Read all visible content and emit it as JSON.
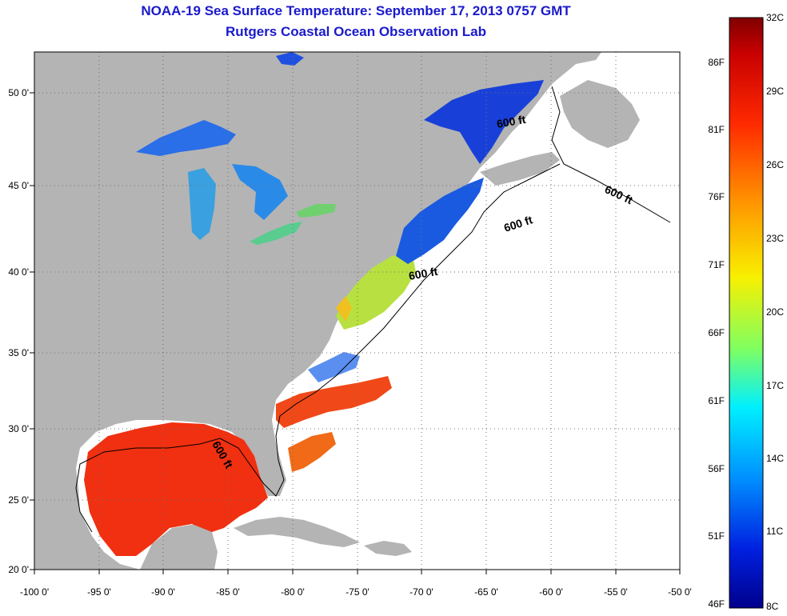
{
  "title_line1": "NOAA-19 Sea Surface Temperature:  September 17, 2013 0757 GMT",
  "title_line2": "Rutgers Coastal Ocean Observation Lab",
  "colors": {
    "land": "#b4b4b4",
    "ocean_no_data": "#ffffff",
    "grid": "#707070",
    "title": "#1a1acc"
  },
  "map": {
    "lon_ticks": [
      "-100 0'",
      "-95 0'",
      "-90 0'",
      "-85 0'",
      "-80 0'",
      "-75 0'",
      "-70 0'",
      "-65 0'",
      "-60 0'",
      "-55 0'",
      "-50 0'"
    ],
    "lat_ticks": [
      "50 0'",
      "45 0'",
      "40 0'",
      "35 0'",
      "30 0'",
      "25 0'",
      "20 0'"
    ],
    "contour_label": "600 ft",
    "lon_range": [
      -100,
      -50
    ],
    "lat_range": [
      20,
      52.5
    ],
    "grid": true
  },
  "colorbar": {
    "celsius_labels": [
      "32C",
      "29C",
      "26C",
      "23C",
      "20C",
      "17C",
      "14C",
      "11C",
      "8C"
    ],
    "fahrenheit_labels": [
      "86F",
      "81F",
      "76F",
      "71F",
      "66F",
      "61F",
      "56F",
      "51F",
      "46F"
    ],
    "range_c": [
      8,
      32
    ]
  }
}
